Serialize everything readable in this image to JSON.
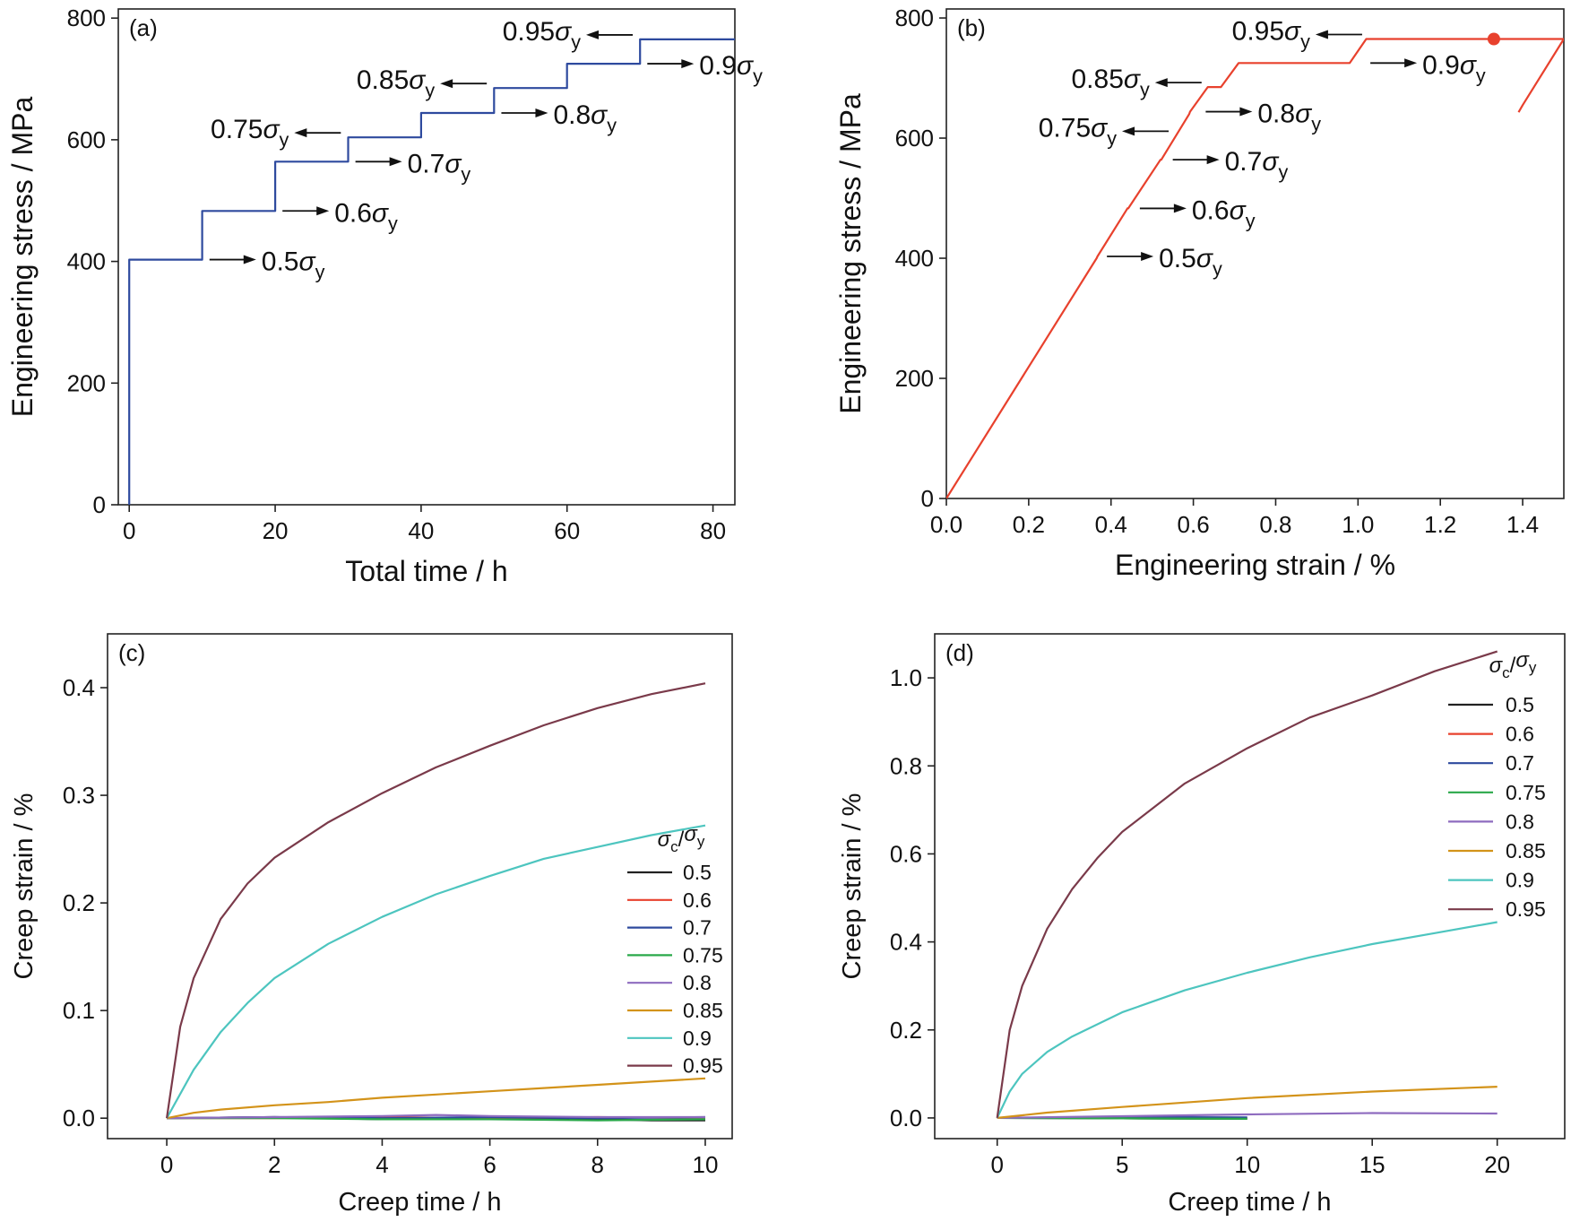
{
  "figure": {
    "panels": [
      {
        "id": "a",
        "label": "(a)",
        "xlabel": "Total time / h",
        "ylabel": "Engineering stress / MPa",
        "xticks": [
          "0",
          "20",
          "40",
          "60",
          "80"
        ],
        "yticks": [
          "0",
          "200",
          "400",
          "600",
          "800"
        ]
      },
      {
        "id": "b",
        "label": "(b)",
        "xlabel": "Engineering strain / %",
        "ylabel": "Engineering stress / MPa",
        "xticks": [
          "0.0",
          "0.2",
          "0.4",
          "0.6",
          "0.8",
          "1.0",
          "1.2",
          "1.4"
        ],
        "yticks": [
          "0",
          "200",
          "400",
          "600",
          "800"
        ]
      },
      {
        "id": "c",
        "label": "(c)",
        "xlabel": "Creep time / h",
        "ylabel": "Creep strain / %",
        "xticks": [
          "0",
          "2",
          "4",
          "6",
          "8",
          "10"
        ],
        "yticks": [
          "0.0",
          "0.1",
          "0.2",
          "0.3",
          "0.4"
        ]
      },
      {
        "id": "d",
        "label": "(d)",
        "xlabel": "Creep time / h",
        "ylabel": "Creep strain / %",
        "xticks": [
          "0",
          "5",
          "10",
          "15",
          "20"
        ],
        "yticks": [
          "0.0",
          "0.2",
          "0.4",
          "0.6",
          "0.8",
          "1.0"
        ]
      }
    ],
    "level_annotations": [
      "0.5σy",
      "0.6σy",
      "0.7σy",
      "0.75σy",
      "0.8σy",
      "0.85σy",
      "0.9σy",
      "0.95σy"
    ],
    "legend_title": "σc/σy"
  },
  "chart_data": [
    {
      "panel": "a",
      "type": "line",
      "xlabel": "Total time / h",
      "ylabel": "Engineering stress / MPa",
      "xlim": [
        -1.5,
        83
      ],
      "ylim": [
        0,
        815
      ],
      "series": [
        {
          "color": "#2e4a9e",
          "x": [
            0,
            0,
            10,
            10,
            20,
            20,
            30,
            30,
            40,
            40,
            50,
            50,
            60,
            60,
            70,
            70,
            83
          ],
          "y": [
            0,
            403,
            403,
            483,
            483,
            564,
            564,
            604,
            604,
            644,
            644,
            685,
            685,
            725,
            725,
            765,
            765
          ]
        }
      ],
      "annotations": [
        {
          "text": "0.5σy",
          "x": 11,
          "y": 403,
          "arrow": "right"
        },
        {
          "text": "0.6σy",
          "x": 21,
          "y": 483,
          "arrow": "right"
        },
        {
          "text": "0.7σy",
          "x": 31,
          "y": 564,
          "arrow": "right"
        },
        {
          "text": "0.75σy",
          "x": 29,
          "y": 604,
          "arrow": "left"
        },
        {
          "text": "0.8σy",
          "x": 51,
          "y": 644,
          "arrow": "right"
        },
        {
          "text": "0.85σy",
          "x": 49,
          "y": 685,
          "arrow": "left"
        },
        {
          "text": "0.9σy",
          "x": 71,
          "y": 725,
          "arrow": "right"
        },
        {
          "text": "0.95σy",
          "x": 69,
          "y": 765,
          "arrow": "left"
        }
      ]
    },
    {
      "panel": "b",
      "type": "line",
      "xlabel": "Engineering strain / %",
      "ylabel": "Engineering stress / MPa",
      "xlim": [
        0,
        1.5
      ],
      "ylim": [
        0,
        815
      ],
      "series": [
        {
          "color": "#e8412d",
          "x": [
            0,
            0.365,
            0.367,
            0.44,
            0.442,
            0.52,
            0.522,
            0.59,
            0.592,
            0.635,
            0.667,
            0.71,
            0.98,
            1.02,
            1.5,
            1.4,
            1.39
          ],
          "y": [
            0,
            400,
            403,
            483,
            483,
            564,
            564,
            640,
            644,
            685,
            685,
            725,
            725,
            765,
            765,
            655,
            643
          ]
        }
      ],
      "markers": [
        {
          "x": 1.33,
          "y": 765
        }
      ],
      "annotations": [
        {
          "text": "0.5σy",
          "x": 0.39,
          "y": 403,
          "arrow": "right"
        },
        {
          "text": "0.6σy",
          "x": 0.47,
          "y": 483,
          "arrow": "right"
        },
        {
          "text": "0.7σy",
          "x": 0.55,
          "y": 564,
          "arrow": "right"
        },
        {
          "text": "0.75σy",
          "x": 0.54,
          "y": 604,
          "arrow": "left"
        },
        {
          "text": "0.8σy",
          "x": 0.63,
          "y": 644,
          "arrow": "right"
        },
        {
          "text": "0.85σy",
          "x": 0.62,
          "y": 685,
          "arrow": "left"
        },
        {
          "text": "0.9σy",
          "x": 1.03,
          "y": 725,
          "arrow": "right"
        },
        {
          "text": "0.95σy",
          "x": 1.01,
          "y": 765,
          "arrow": "left"
        }
      ]
    },
    {
      "panel": "c",
      "type": "line",
      "xlabel": "Creep time / h",
      "ylabel": "Creep strain / %",
      "xlim": [
        -1.1,
        10.5
      ],
      "ylim": [
        -0.019,
        0.45
      ],
      "legend_title": "σc/σy",
      "legend_position": "center-right",
      "series": [
        {
          "name": "0.5",
          "color": "#222222",
          "x": [
            0,
            2,
            4,
            6,
            8,
            9,
            10
          ],
          "y": [
            0,
            0.001,
            -0.001,
            0.0,
            -0.001,
            -0.002,
            -0.002
          ]
        },
        {
          "name": "0.6",
          "color": "#e8412d",
          "x": [
            0,
            2,
            4,
            6,
            8,
            10
          ],
          "y": [
            0,
            0.0,
            0.001,
            0.0,
            0.001,
            0.0
          ]
        },
        {
          "name": "0.7",
          "color": "#2e4a9e",
          "x": [
            0,
            2,
            4,
            6,
            8,
            10
          ],
          "y": [
            0,
            0.001,
            0.0,
            0.001,
            0.0,
            0.001
          ]
        },
        {
          "name": "0.75",
          "color": "#2aa84a",
          "x": [
            0,
            2,
            4,
            6,
            8,
            10
          ],
          "y": [
            0,
            0.0,
            -0.001,
            -0.001,
            -0.002,
            -0.001
          ]
        },
        {
          "name": "0.8",
          "color": "#8e6bbf",
          "x": [
            0,
            2,
            4,
            5,
            6,
            8,
            10
          ],
          "y": [
            0,
            0.001,
            0.002,
            0.003,
            0.002,
            0.001,
            0.001
          ]
        },
        {
          "name": "0.85",
          "color": "#d3931a",
          "x": [
            0,
            0.5,
            1,
            2,
            3,
            4,
            5,
            6,
            7,
            8,
            9,
            10
          ],
          "y": [
            0,
            0.005,
            0.008,
            0.012,
            0.015,
            0.019,
            0.022,
            0.025,
            0.028,
            0.031,
            0.034,
            0.037
          ]
        },
        {
          "name": "0.9",
          "color": "#4dc5bf",
          "x": [
            0,
            0.5,
            1,
            1.5,
            2,
            3,
            4,
            5,
            6,
            7,
            8,
            9,
            10
          ],
          "y": [
            0,
            0.045,
            0.08,
            0.107,
            0.13,
            0.162,
            0.187,
            0.208,
            0.225,
            0.241,
            0.252,
            0.263,
            0.272
          ]
        },
        {
          "name": "0.95",
          "color": "#7a3a4a",
          "x": [
            0,
            0.25,
            0.5,
            1,
            1.5,
            2,
            3,
            4,
            5,
            6,
            7,
            8,
            9,
            10
          ],
          "y": [
            0,
            0.085,
            0.13,
            0.185,
            0.218,
            0.242,
            0.275,
            0.302,
            0.326,
            0.346,
            0.365,
            0.381,
            0.394,
            0.404
          ]
        }
      ]
    },
    {
      "panel": "d",
      "type": "line",
      "xlabel": "Creep time / h",
      "ylabel": "Creep strain / %",
      "xlim": [
        -2.5,
        22.7
      ],
      "ylim": [
        -0.047,
        1.1
      ],
      "legend_title": "σc/σy",
      "legend_position": "top-right",
      "series": [
        {
          "name": "0.5",
          "color": "#222222",
          "x": [
            0,
            5,
            10
          ],
          "y": [
            0,
            -0.001,
            -0.002
          ]
        },
        {
          "name": "0.6",
          "color": "#e8412d",
          "x": [
            0,
            5,
            10
          ],
          "y": [
            0,
            0.001,
            0.0
          ]
        },
        {
          "name": "0.7",
          "color": "#2e4a9e",
          "x": [
            0,
            5,
            10
          ],
          "y": [
            0,
            0.002,
            0.001
          ]
        },
        {
          "name": "0.75",
          "color": "#2aa84a",
          "x": [
            0,
            5,
            10
          ],
          "y": [
            0,
            -0.001,
            -0.002
          ]
        },
        {
          "name": "0.8",
          "color": "#8e6bbf",
          "x": [
            0,
            5,
            10,
            15,
            20
          ],
          "y": [
            0,
            0.004,
            0.008,
            0.011,
            0.01
          ]
        },
        {
          "name": "0.85",
          "color": "#d3931a",
          "x": [
            0,
            2,
            5,
            10,
            15,
            20
          ],
          "y": [
            0,
            0.012,
            0.025,
            0.045,
            0.06,
            0.071
          ]
        },
        {
          "name": "0.9",
          "color": "#4dc5bf",
          "x": [
            0,
            0.5,
            1,
            2,
            3,
            5,
            7.5,
            10,
            12.5,
            15,
            17.5,
            20
          ],
          "y": [
            0,
            0.06,
            0.1,
            0.15,
            0.185,
            0.24,
            0.29,
            0.33,
            0.365,
            0.395,
            0.42,
            0.445
          ]
        },
        {
          "name": "0.95",
          "color": "#7a3a4a",
          "x": [
            0,
            0.5,
            1,
            2,
            3,
            4,
            5,
            7.5,
            10,
            12.5,
            15,
            17.5,
            20
          ],
          "y": [
            0,
            0.2,
            0.3,
            0.43,
            0.52,
            0.59,
            0.65,
            0.76,
            0.84,
            0.91,
            0.96,
            1.015,
            1.06
          ]
        }
      ]
    }
  ]
}
